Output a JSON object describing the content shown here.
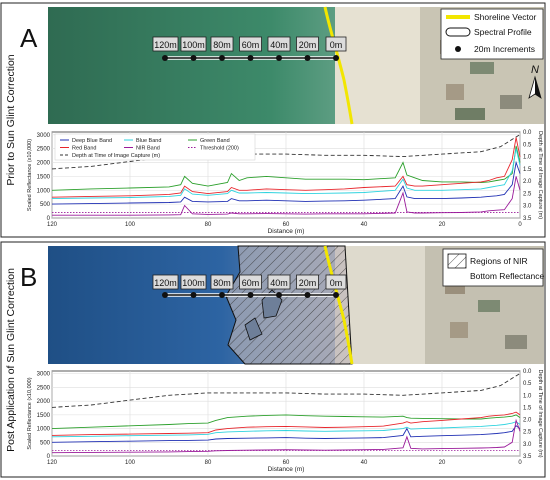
{
  "panels": [
    {
      "id": "A",
      "letter": "A",
      "side_title": "Prior to Sun Glint Correction",
      "map_legend": [
        {
          "label": "Shoreline Vector",
          "symbol": "yellow-line"
        },
        {
          "label": "Spectral Profile",
          "symbol": "rounded-box"
        },
        {
          "label": "20m Increments",
          "symbol": "dot"
        }
      ],
      "north_label": "N",
      "profile_labels": [
        "120m",
        "100m",
        "80m",
        "60m",
        "40m",
        "20m",
        "0m"
      ],
      "chart_data": {
        "type": "line",
        "xlabel": "Distance (m)",
        "ylabel": "Scaled Reflectance (x10,000)",
        "y2label": "Depth at Time of Image Capture (m)",
        "x_ticks": [
          120,
          100,
          80,
          60,
          40,
          20,
          0
        ],
        "y_ticks": [
          0,
          500,
          1000,
          1500,
          2000,
          2500,
          3000
        ],
        "y2_ticks": [
          "0.0",
          "0.5",
          "1.0",
          "1.5",
          "2.0",
          "2.5",
          "3.0",
          "3.5"
        ],
        "xlim": [
          120,
          0
        ],
        "ylim": [
          0,
          3100
        ],
        "grid": true,
        "legend": [
          {
            "label": "Deep Blue Band",
            "color": "#1f2fb3"
          },
          {
            "label": "Blue Band",
            "color": "#2fd3df"
          },
          {
            "label": "Green Band",
            "color": "#2ca02c"
          },
          {
            "label": "Red Band",
            "color": "#e8262c"
          },
          {
            "label": "NIR Band",
            "color": "#9a1b9a"
          },
          {
            "label": "Threshold (200)",
            "color": "#9a1b9a"
          },
          {
            "label": "Depth at Time of Image Capture (m)",
            "color": "#333333"
          }
        ],
        "x": [
          120,
          110,
          100,
          90,
          87,
          86,
          84,
          80,
          75,
          74,
          72,
          70,
          65,
          60,
          55,
          50,
          45,
          40,
          32,
          30,
          29,
          27,
          25,
          20,
          15,
          10,
          8,
          6,
          4,
          2,
          1,
          0
        ],
        "series": [
          {
            "name": "Green Band",
            "color": "#2ca02c",
            "values": [
              1000,
              1050,
              1080,
              1120,
              1200,
              1500,
              1250,
              1150,
              1280,
              1600,
              1350,
              1450,
              1500,
              1450,
              1400,
              1400,
              1400,
              1380,
              1450,
              2000,
              1550,
              1450,
              1350,
              1300,
              1300,
              1280,
              1300,
              1350,
              1400,
              1600,
              2600,
              2000
            ]
          },
          {
            "name": "Red Band",
            "color": "#e8262c",
            "values": [
              750,
              780,
              800,
              850,
              900,
              1150,
              950,
              880,
              950,
              1100,
              1000,
              1000,
              1050,
              1020,
              1000,
              1020,
              1050,
              1100,
              1150,
              1500,
              1200,
              1150,
              1150,
              1200,
              1250,
              1300,
              1350,
              1450,
              1500,
              2100,
              2900,
              2200
            ]
          },
          {
            "name": "Blue Band",
            "color": "#2fd3df",
            "values": [
              700,
              720,
              740,
              780,
              820,
              1050,
              860,
              820,
              880,
              1000,
              900,
              900,
              920,
              900,
              880,
              890,
              900,
              920,
              1000,
              1400,
              1080,
              1000,
              1000,
              1000,
              1020,
              1050,
              1100,
              1150,
              1200,
              1700,
              2500,
              1900
            ]
          },
          {
            "name": "Deep Blue Band",
            "color": "#1f2fb3",
            "values": [
              500,
              520,
              540,
              560,
              580,
              750,
              600,
              580,
              600,
              700,
              620,
              620,
              640,
              620,
              600,
              610,
              620,
              640,
              700,
              1150,
              760,
              700,
              700,
              700,
              720,
              750,
              780,
              800,
              850,
              1200,
              2000,
              1600
            ]
          },
          {
            "name": "NIR Band",
            "color": "#9a1b9a",
            "values": [
              100,
              100,
              100,
              110,
              120,
              450,
              150,
              130,
              140,
              180,
              150,
              150,
              160,
              150,
              140,
              150,
              150,
              150,
              180,
              900,
              220,
              180,
              180,
              190,
              200,
              220,
              260,
              280,
              300,
              700,
              1500,
              1000
            ]
          }
        ],
        "threshold": {
          "name": "Threshold (200)",
          "value": 200,
          "color": "#9a1b9a"
        },
        "depth": {
          "name": "Depth at Time of Image Capture (m)",
          "x": [
            120,
            110,
            100,
            90,
            80,
            70,
            60,
            50,
            40,
            30,
            20,
            10,
            5,
            2,
            0
          ],
          "values": [
            1.5,
            1.4,
            1.2,
            1.0,
            0.9,
            0.9,
            0.9,
            0.95,
            0.95,
            1.0,
            0.9,
            0.8,
            0.6,
            0.3,
            0.1
          ]
        }
      }
    },
    {
      "id": "B",
      "letter": "B",
      "side_title": "Post Application of Sun Glint Correction",
      "map_legend": [
        {
          "label": "Regions of NIR",
          "symbol": "hatch"
        },
        {
          "label": "Bottom Reflectance",
          "symbol": "none"
        }
      ],
      "north_label": "",
      "profile_labels": [
        "120m",
        "100m",
        "80m",
        "60m",
        "40m",
        "20m",
        "0m"
      ],
      "chart_data": {
        "type": "line",
        "xlabel": "Distance (m)",
        "ylabel": "Scaled Reflectance (x10,000)",
        "y2label": "Depth at Time of Image Capture (m)",
        "x_ticks": [
          120,
          100,
          80,
          60,
          40,
          20,
          0
        ],
        "y_ticks": [
          0,
          500,
          1000,
          1500,
          2000,
          2500,
          3000
        ],
        "y2_ticks": [
          "0.0",
          "0.5",
          "1.0",
          "1.5",
          "2.0",
          "2.5",
          "3.0",
          "3.5"
        ],
        "xlim": [
          120,
          0
        ],
        "ylim": [
          0,
          3100
        ],
        "grid": true,
        "legend": [],
        "x": [
          120,
          110,
          100,
          90,
          85,
          80,
          78,
          75,
          70,
          65,
          60,
          55,
          50,
          45,
          40,
          35,
          30,
          29,
          28,
          25,
          20,
          15,
          10,
          8,
          6,
          4,
          2,
          1,
          0
        ],
        "series": [
          {
            "name": "Green Band",
            "color": "#2ca02c",
            "values": [
              1000,
              1050,
              1100,
              1150,
              1180,
              1200,
              1300,
              1400,
              1450,
              1480,
              1500,
              1470,
              1450,
              1440,
              1430,
              1420,
              1450,
              1400,
              1380,
              1370,
              1360,
              1350,
              1350,
              1380,
              1400,
              1420,
              1450,
              1500,
              1400
            ]
          },
          {
            "name": "Red Band",
            "color": "#e8262c",
            "values": [
              750,
              780,
              800,
              820,
              830,
              850,
              950,
              1000,
              1050,
              1070,
              1080,
              1060,
              1040,
              1050,
              1070,
              1090,
              1200,
              1250,
              1200,
              1250,
              1300,
              1350,
              1400,
              1450,
              1480,
              1500,
              1550,
              1600,
              1500
            ]
          },
          {
            "name": "Blue Band",
            "color": "#2fd3df",
            "values": [
              700,
              720,
              740,
              760,
              770,
              790,
              850,
              880,
              900,
              920,
              930,
              910,
              900,
              910,
              920,
              930,
              1000,
              1050,
              980,
              1000,
              1020,
              1050,
              1080,
              1100,
              1120,
              1150,
              1200,
              1250,
              1150
            ]
          },
          {
            "name": "Deep Blue Band",
            "color": "#1f2fb3",
            "values": [
              500,
              520,
              540,
              560,
              570,
              580,
              620,
              640,
              650,
              660,
              670,
              650,
              640,
              650,
              660,
              670,
              750,
              1000,
              700,
              720,
              740,
              760,
              780,
              800,
              820,
              850,
              900,
              1100,
              1000
            ]
          },
          {
            "name": "NIR Band",
            "color": "#9a1b9a",
            "values": [
              120,
              130,
              140,
              150,
              160,
              170,
              190,
              200,
              210,
              220,
              230,
              220,
              210,
              220,
              230,
              240,
              300,
              700,
              280,
              260,
              270,
              280,
              290,
              300,
              310,
              330,
              500,
              1300,
              900
            ]
          }
        ],
        "threshold": {
          "name": "Threshold (200)",
          "value": 200,
          "color": "#9a1b9a"
        },
        "depth": {
          "name": "Depth at Time of Image Capture (m)",
          "x": [
            120,
            110,
            100,
            90,
            80,
            70,
            60,
            50,
            40,
            30,
            20,
            10,
            5,
            2,
            0
          ],
          "values": [
            1.5,
            1.4,
            1.2,
            1.0,
            0.9,
            0.9,
            0.9,
            0.95,
            0.95,
            1.0,
            0.9,
            0.8,
            0.6,
            0.3,
            0.1
          ]
        }
      }
    }
  ]
}
